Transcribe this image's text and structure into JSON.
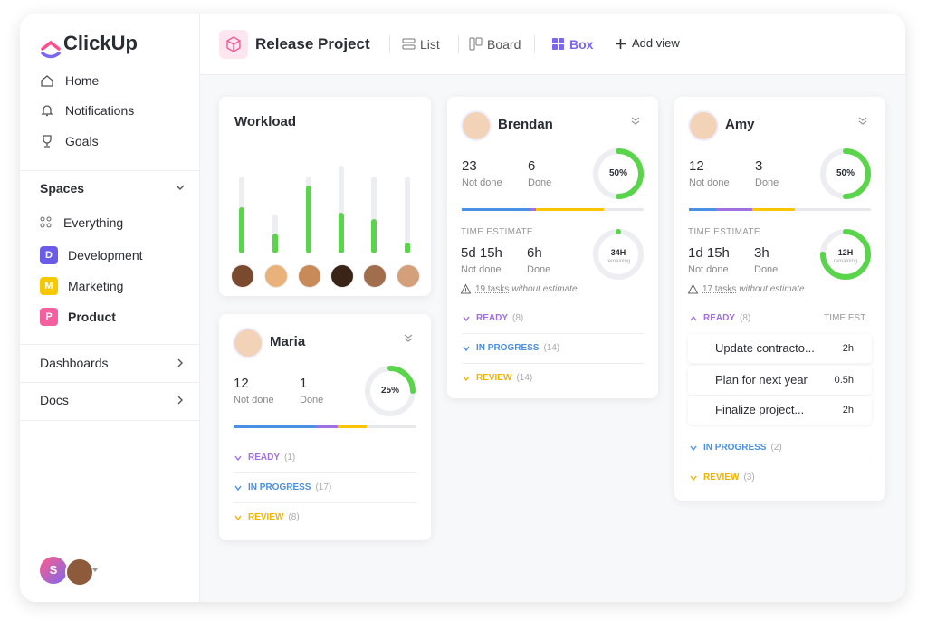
{
  "sidebar": {
    "logo": "ClickUp",
    "nav": [
      "Home",
      "Notifications",
      "Goals"
    ],
    "spaces_title": "Spaces",
    "everything": "Everything",
    "spaces": [
      {
        "badge": "D",
        "name": "Development",
        "color": "#6b5ce7"
      },
      {
        "badge": "M",
        "name": "Marketing",
        "color": "#f7c800"
      },
      {
        "badge": "P",
        "name": "Product",
        "color": "#f55fa0"
      }
    ],
    "sections": [
      "Dashboards",
      "Docs"
    ],
    "user": "S"
  },
  "header": {
    "project": "Release Project",
    "views": [
      {
        "label": "List",
        "active": false
      },
      {
        "label": "Board",
        "active": false
      },
      {
        "label": "Box",
        "active": true
      }
    ],
    "add_view": "Add view"
  },
  "workload": {
    "title": "Workload",
    "capacity": [
      95,
      48,
      95,
      108,
      94,
      94
    ],
    "load": [
      57,
      24,
      83,
      50,
      42,
      13
    ],
    "color": "#5ad44b"
  },
  "cards": [
    {
      "name": "Maria",
      "not_done": 12,
      "not_done_label": "Not done",
      "done": 1,
      "done_label": "Done",
      "percent": {
        "value": 25,
        "label": "25%"
      },
      "progress": [
        {
          "color": "#4a90e2",
          "value": 45
        },
        {
          "color": "#a070e0",
          "value": 12
        },
        {
          "color": "#f7c600",
          "value": 16
        }
      ],
      "groups": [
        {
          "name": "READY",
          "count": "(1)",
          "color": "#a070e0"
        },
        {
          "name": "IN PROGRESS",
          "count": "(17)",
          "color": "#4a90e2"
        },
        {
          "name": "REVIEW",
          "count": "(8)",
          "color": "#f2b200"
        }
      ]
    },
    {
      "name": "Brendan",
      "not_done": 23,
      "not_done_label": "Not done",
      "done": 6,
      "done_label": "Done",
      "percent": {
        "value": 50,
        "label": "50%"
      },
      "progress": [
        {
          "color": "#4a90e2",
          "value": 38
        },
        {
          "color": "#a070e0",
          "value": 3
        },
        {
          "color": "#f7c600",
          "value": 37
        }
      ],
      "time": {
        "title": "TIME ESTIMATE",
        "not_done": "5d 15h",
        "not_done_label": "Not done",
        "done": "6h",
        "done_label": "Done",
        "remaining": {
          "value": 0,
          "label": "34H"
        },
        "remaining_label": "remaining",
        "warning_link": "19 tasks",
        "warning_text": "without estimate"
      },
      "groups": [
        {
          "name": "READY",
          "count": "(8)",
          "color": "#a070e0"
        },
        {
          "name": "IN PROGRESS",
          "count": "(14)",
          "color": "#4a90e2"
        },
        {
          "name": "REVIEW",
          "count": "(14)",
          "color": "#f2b200"
        }
      ]
    },
    {
      "name": "Amy",
      "not_done": 12,
      "not_done_label": "Not done",
      "done": 3,
      "done_label": "Done",
      "percent": {
        "value": 50,
        "label": "50%"
      },
      "progress": [
        {
          "color": "#4a90e2",
          "value": 15
        },
        {
          "color": "#a070e0",
          "value": 20
        },
        {
          "color": "#f7c600",
          "value": 23
        }
      ],
      "time": {
        "title": "TIME ESTIMATE",
        "not_done": "1d 15h",
        "not_done_label": "Not done",
        "done": "3h",
        "done_label": "Done",
        "remaining": {
          "value": 75,
          "label": "12H"
        },
        "remaining_label": "remaining",
        "warning_link": "17 tasks",
        "warning_text": "without estimate"
      },
      "groups": [
        {
          "name": "READY",
          "count": "(8)",
          "color": "#a070e0",
          "column": "TIME EST.",
          "tasks": [
            {
              "name": "Update contracto...",
              "est": "2h"
            },
            {
              "name": "Plan for next year",
              "est": "0.5h"
            },
            {
              "name": "Finalize project...",
              "est": "2h"
            }
          ]
        },
        {
          "name": "IN PROGRESS",
          "count": "(2)",
          "color": "#4a90e2"
        },
        {
          "name": "REVIEW",
          "count": "(3)",
          "color": "#f2b200"
        }
      ]
    }
  ]
}
